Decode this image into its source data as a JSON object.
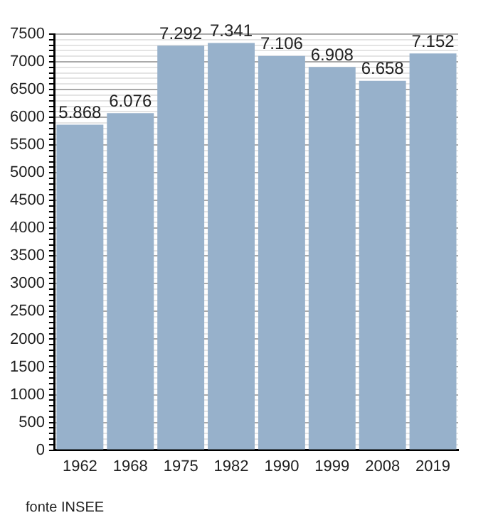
{
  "chart_data": {
    "type": "bar",
    "categories": [
      "1962",
      "1968",
      "1975",
      "1982",
      "1990",
      "1999",
      "2008",
      "2019"
    ],
    "values": [
      5868,
      6076,
      7292,
      7341,
      7106,
      6908,
      6658,
      7152
    ],
    "value_labels": [
      "5.868",
      "6.076",
      "7.292",
      "7.341",
      "7.106",
      "6.908",
      "6.658",
      "7.152"
    ],
    "color": "#97b1cb",
    "ylim": [
      0,
      7500
    ],
    "yticks": [
      0,
      {
        "value": 100,
        "label": null
      },
      {
        "value": 200,
        "label": null
      },
      {
        "value": 300,
        "label": null
      },
      {
        "value": 400,
        "label": null
      },
      500,
      {
        "value": 600,
        "label": null
      },
      {
        "value": 700,
        "label": null
      },
      {
        "value": 800,
        "label": null
      },
      {
        "value": 900,
        "label": null
      },
      1000,
      {
        "value": 1100,
        "label": null
      },
      {
        "value": 1200,
        "label": null
      },
      {
        "value": 1300,
        "label": null
      },
      {
        "value": 1400,
        "label": null
      },
      1500,
      {
        "value": 1600,
        "label": null
      },
      {
        "value": 1700,
        "label": null
      },
      {
        "value": 1800,
        "label": null
      },
      {
        "value": 1900,
        "label": null
      },
      2000,
      {
        "value": 2100,
        "label": null
      },
      {
        "value": 2200,
        "label": null
      },
      {
        "value": 2300,
        "label": null
      },
      {
        "value": 2400,
        "label": null
      },
      2500,
      {
        "value": 2600,
        "label": null
      },
      {
        "value": 2700,
        "label": null
      },
      {
        "value": 2800,
        "label": null
      },
      {
        "value": 2900,
        "label": null
      },
      3000,
      {
        "value": 3100,
        "label": null
      },
      {
        "value": 3200,
        "label": null
      },
      {
        "value": 3300,
        "label": null
      },
      {
        "value": 3400,
        "label": null
      },
      3500,
      {
        "value": 3600,
        "label": null
      },
      {
        "value": 3700,
        "label": null
      },
      {
        "value": 3800,
        "label": null
      },
      {
        "value": 3900,
        "label": null
      },
      4000,
      {
        "value": 4100,
        "label": null
      },
      {
        "value": 4200,
        "label": null
      },
      {
        "value": 4300,
        "label": null
      },
      {
        "value": 4400,
        "label": null
      },
      4500,
      {
        "value": 4600,
        "label": null
      },
      {
        "value": 4700,
        "label": null
      },
      {
        "value": 4800,
        "label": null
      },
      {
        "value": 4900,
        "label": null
      },
      5000,
      {
        "value": 5100,
        "label": null
      },
      {
        "value": 5200,
        "label": null
      },
      {
        "value": 5300,
        "label": null
      },
      {
        "value": 5400,
        "label": null
      },
      5500,
      {
        "value": 5600,
        "label": null
      },
      {
        "value": 5700,
        "label": null
      },
      {
        "value": 5800,
        "label": null
      },
      {
        "value": 5900,
        "label": null
      },
      6000,
      {
        "value": 6100,
        "label": null
      },
      {
        "value": 6200,
        "label": null
      },
      {
        "value": 6300,
        "label": null
      },
      {
        "value": 6400,
        "label": null
      },
      6500,
      {
        "value": 6600,
        "label": null
      },
      {
        "value": 6700,
        "label": null
      },
      {
        "value": 6800,
        "label": null
      },
      {
        "value": 6900,
        "label": null
      },
      7000,
      {
        "value": 7100,
        "label": null
      },
      {
        "value": 7200,
        "label": null
      },
      {
        "value": 7300,
        "label": null
      },
      {
        "value": 7400,
        "label": null
      },
      7500
    ],
    "grid": "y",
    "legend": false,
    "annotations": [
      "fonte INSEE"
    ]
  }
}
